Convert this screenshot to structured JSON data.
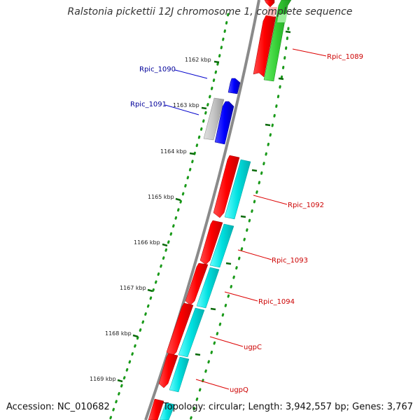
{
  "title": "Ralstonia pickettii 12J chromosome 1, complete sequence",
  "accession_text": "Accession: NC_010682",
  "summary_text": "Topology: circular; Length: 3,942,557 bp; Genes: 3,767",
  "scale": {
    "unit": "kbp",
    "ticks": [
      {
        "kbp": 1162,
        "label": "1162 kbp"
      },
      {
        "kbp": 1163,
        "label": "1163 kbp"
      },
      {
        "kbp": 1164,
        "label": "1164 kbp"
      },
      {
        "kbp": 1165,
        "label": "1165 kbp"
      },
      {
        "kbp": 1166,
        "label": "1166 kbp"
      },
      {
        "kbp": 1167,
        "label": "1167 kbp"
      },
      {
        "kbp": 1168,
        "label": "1168 kbp"
      },
      {
        "kbp": 1169,
        "label": "1169 kbp"
      }
    ]
  },
  "colors": {
    "backbone": "#8a8a8a",
    "cds": "#ff0000",
    "gene_cyan": "#00e5e5",
    "gene_green": "#33cc33",
    "gene_blue": "#0000ff",
    "pseudo_gray": "#bbbbbb",
    "label_red": "#cc0000",
    "label_blue": "#000099",
    "tick_green": "#006600"
  },
  "genes": [
    {
      "name": "Rpic_1089",
      "color": "label_red"
    },
    {
      "name": "Rpic_1090",
      "color": "label_blue"
    },
    {
      "name": "Rpic_1091",
      "color": "label_blue"
    },
    {
      "name": "Rpic_1092",
      "color": "label_red"
    },
    {
      "name": "Rpic_1093",
      "color": "label_red"
    },
    {
      "name": "Rpic_1094",
      "color": "label_red"
    },
    {
      "name": "ugpC",
      "color": "label_red"
    },
    {
      "name": "ugpQ",
      "color": "label_red"
    }
  ]
}
